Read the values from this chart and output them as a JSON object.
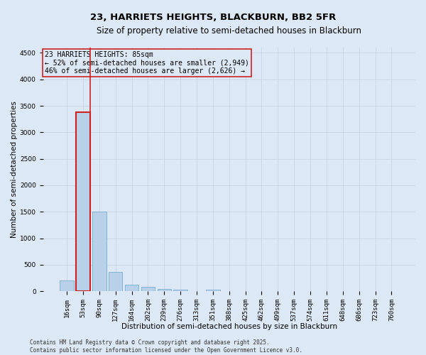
{
  "title_line1": "23, HARRIETS HEIGHTS, BLACKBURN, BB2 5FR",
  "title_line2": "Size of property relative to semi-detached houses in Blackburn",
  "xlabel": "Distribution of semi-detached houses by size in Blackburn",
  "ylabel": "Number of semi-detached properties",
  "footer_line1": "Contains HM Land Registry data © Crown copyright and database right 2025.",
  "footer_line2": "Contains public sector information licensed under the Open Government Licence v3.0.",
  "annotation_title": "23 HARRIETS HEIGHTS: 85sqm",
  "annotation_line1": "← 52% of semi-detached houses are smaller (2,949)",
  "annotation_line2": "46% of semi-detached houses are larger (2,626) →",
  "bar_categories": [
    "16sqm",
    "53sqm",
    "90sqm",
    "127sqm",
    "164sqm",
    "202sqm",
    "239sqm",
    "276sqm",
    "313sqm",
    "351sqm",
    "388sqm",
    "425sqm",
    "462sqm",
    "499sqm",
    "537sqm",
    "574sqm",
    "611sqm",
    "648sqm",
    "686sqm",
    "723sqm",
    "760sqm"
  ],
  "bar_values": [
    200,
    3380,
    1510,
    365,
    130,
    80,
    45,
    25,
    5,
    35,
    5,
    3,
    0,
    0,
    0,
    0,
    0,
    0,
    0,
    0,
    0
  ],
  "bar_color": "#b8d0e8",
  "bar_edge_color": "#7aaad0",
  "highlight_bar_index": 1,
  "highlight_bar_edge_color": "#cc2222",
  "annotation_box_color": "#cc2222",
  "grid_color": "#c5d5e5",
  "background_color": "#dce8f5",
  "ylim": [
    0,
    4600
  ],
  "yticks": [
    0,
    500,
    1000,
    1500,
    2000,
    2500,
    3000,
    3500,
    4000,
    4500
  ],
  "title_fontsize": 9.5,
  "subtitle_fontsize": 8.5,
  "xlabel_fontsize": 7.5,
  "ylabel_fontsize": 7.5,
  "tick_fontsize": 6.5,
  "annotation_fontsize": 7,
  "footer_fontsize": 5.5
}
